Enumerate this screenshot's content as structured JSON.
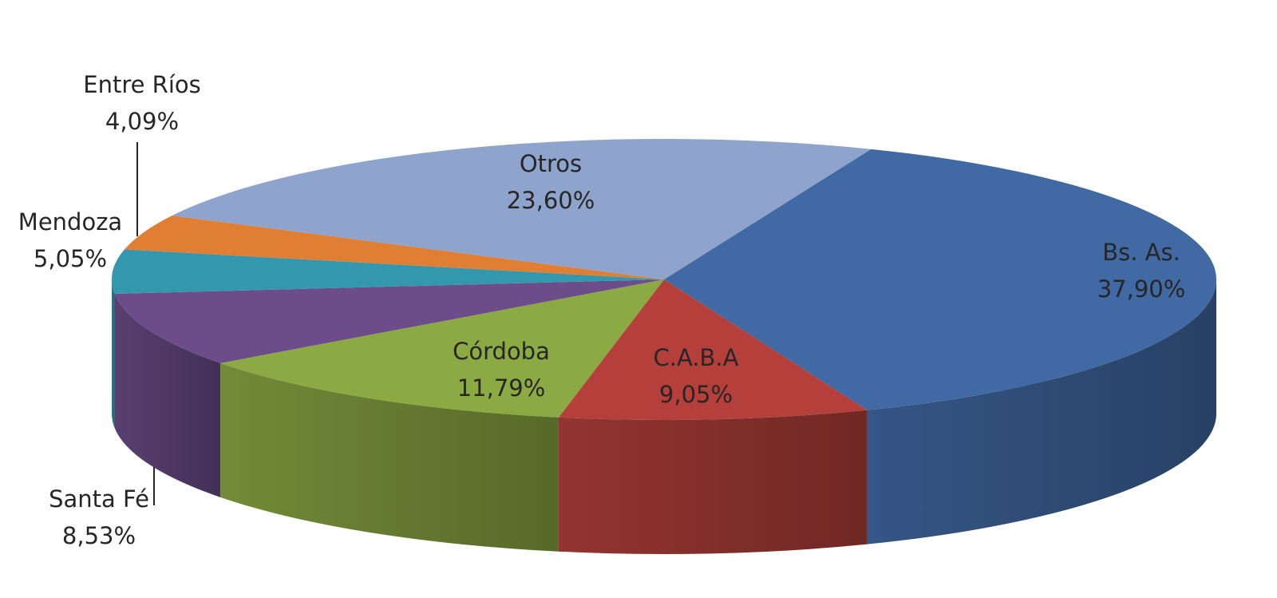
{
  "chart_data": {
    "type": "pie",
    "style": "3d-exploded-pie",
    "legend": "none",
    "slices": [
      {
        "label": "Bs. As.",
        "value_text": "37,90%",
        "value": 37.9,
        "color": "#4169a3"
      },
      {
        "label": "C.A.B.A",
        "value_text": "9,05%",
        "value": 9.05,
        "color": "#b5403b"
      },
      {
        "label": "Córdoba",
        "value_text": "11,79%",
        "value": 11.79,
        "color": "#8caa44"
      },
      {
        "label": "Santa Fé",
        "value_text": "8,53%",
        "value": 8.53,
        "color": "#6c4d8a"
      },
      {
        "label": "Mendoza",
        "value_text": "5,05%",
        "value": 5.05,
        "color": "#3397ae"
      },
      {
        "label": "Entre Ríos",
        "value_text": "4,09%",
        "value": 4.09,
        "color": "#e07f33"
      },
      {
        "label": "Otros",
        "value_text": "23,60%",
        "value": 23.6,
        "color": "#8ea4cc"
      }
    ]
  }
}
